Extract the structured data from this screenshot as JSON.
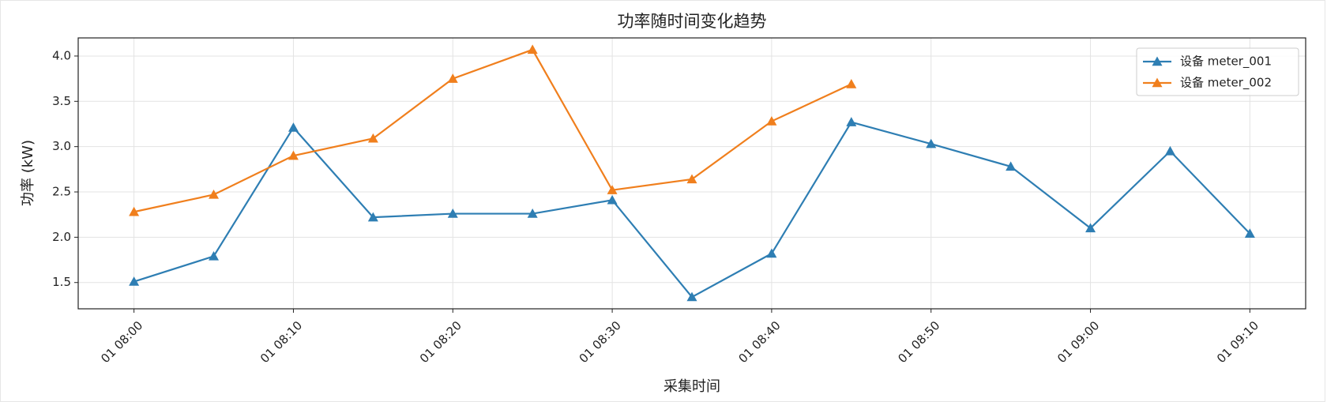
{
  "chart_data": {
    "type": "line",
    "title": "功率随时间变化趋势",
    "x_label": "采集时间",
    "y_label": "功率 (kW)",
    "x": [
      "01 08:00",
      "01 08:05",
      "01 08:10",
      "01 08:15",
      "01 08:20",
      "01 08:25",
      "01 08:30",
      "01 08:35",
      "01 08:40",
      "01 08:45",
      "01 08:50",
      "01 08:55",
      "01 09:00",
      "01 09:05",
      "01 09:10"
    ],
    "series": [
      {
        "name": "设备 meter_001",
        "color": "#2e7eb3",
        "values": [
          1.51,
          1.79,
          3.21,
          2.22,
          2.26,
          2.26,
          2.41,
          1.34,
          1.82,
          3.27,
          3.03,
          2.78,
          2.1,
          2.95,
          2.04
        ]
      },
      {
        "name": "设备 meter_002",
        "color": "#f07f1d",
        "values": [
          2.28,
          2.47,
          2.9,
          3.09,
          3.75,
          4.07,
          2.52,
          2.64,
          3.28,
          3.69,
          null,
          null,
          null,
          null,
          null
        ]
      }
    ],
    "xticks": [
      "01 08:00",
      "01 08:10",
      "01 08:20",
      "01 08:30",
      "01 08:40",
      "01 08:50",
      "01 09:00",
      "01 09:10"
    ],
    "ylim": [
      1.21,
      4.2
    ],
    "yticks": [
      1.5,
      {
        "value": 2,
        "label": "2.0"
      },
      2.5,
      {
        "value": 3,
        "label": "3.0"
      },
      3.5,
      {
        "value": 4,
        "label": "4.0"
      }
    ],
    "grid": true,
    "legend": "upper right",
    "marker": "triangle"
  }
}
